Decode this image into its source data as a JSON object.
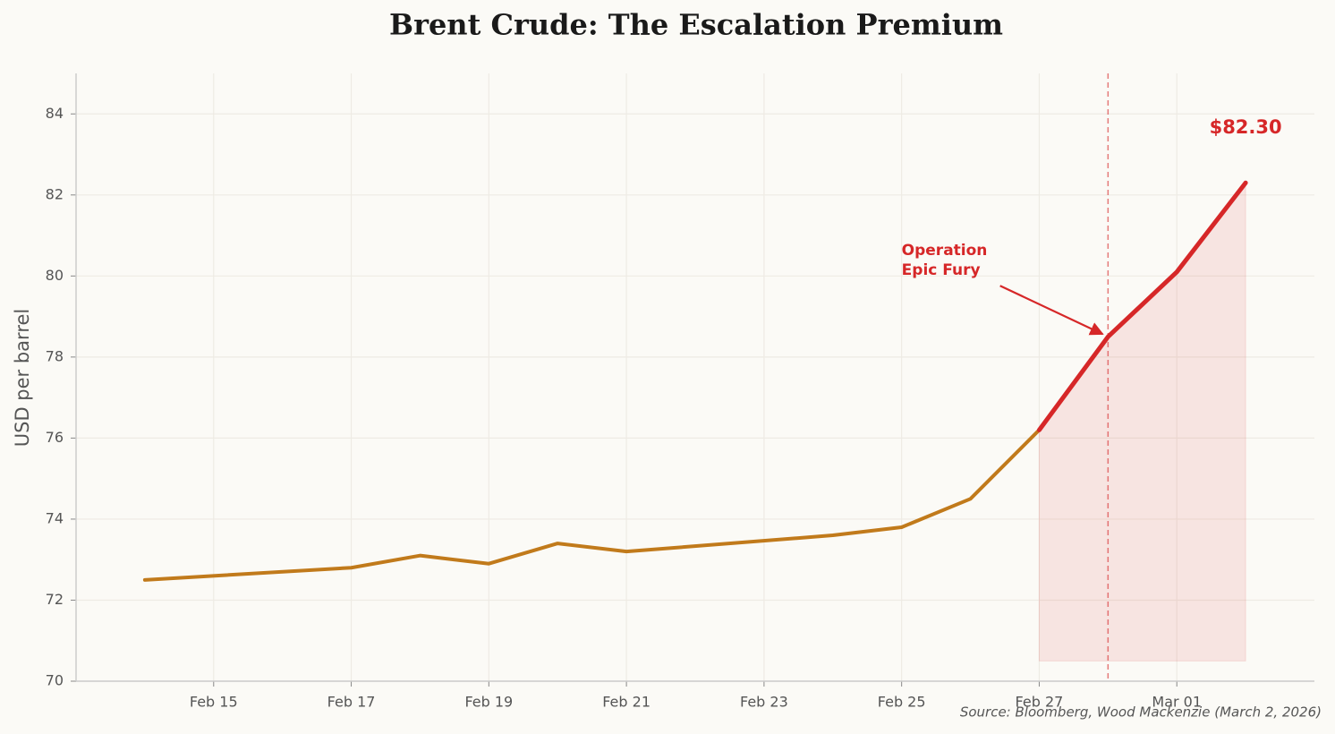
{
  "chart_data": {
    "type": "line",
    "title": "Brent Crude: The Escalation Premium",
    "y_label": "USD per barrel",
    "source": "Source: Bloomberg, Wood Mackenzie (March 2, 2026)",
    "xlim": [
      "Feb 13",
      "Mar 03"
    ],
    "xticks": [
      "Feb 15",
      "Feb 17",
      "Feb 19",
      "Feb 21",
      "Feb 23",
      "Feb 25",
      "Feb 27",
      "Mar 01"
    ],
    "ylim": [
      70,
      85
    ],
    "yticks": [
      70,
      72,
      74,
      76,
      78,
      80,
      82,
      84
    ],
    "grid": true,
    "series": [
      {
        "color": "#c17a1b",
        "x": [
          "Feb 14",
          "Feb 17",
          "Feb 18",
          "Feb 19",
          "Feb 20",
          "Feb 21",
          "Feb 24",
          "Feb 25",
          "Feb 26",
          "Feb 27"
        ],
        "values": [
          72.5,
          72.8,
          73.1,
          72.9,
          73.4,
          73.2,
          73.6,
          73.8,
          74.5,
          76.2
        ]
      },
      {
        "color": "#d62728",
        "x": [
          "Feb 27",
          "Feb 28",
          "Mar 01",
          "Mar 02"
        ],
        "values": [
          76.2,
          78.5,
          80.1,
          82.3
        ],
        "value_labels": [
          null,
          null,
          null,
          "$82.30"
        ],
        "fill_base": 70.5
      }
    ],
    "event": {
      "x": "Feb 28",
      "label": [
        "Operation",
        "Epic Fury"
      ]
    }
  }
}
